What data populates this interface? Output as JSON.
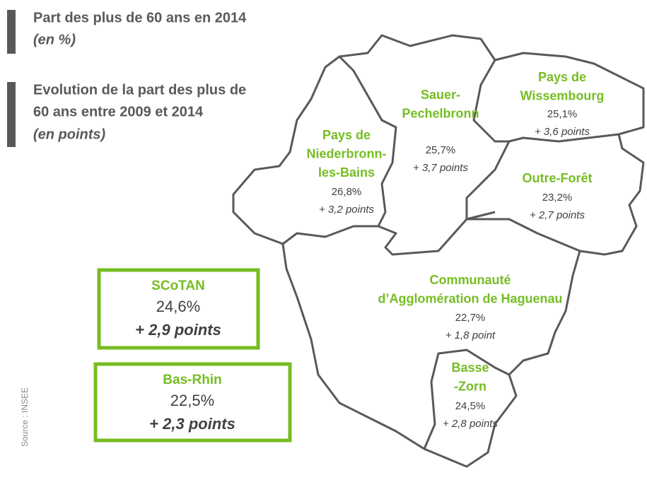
{
  "legend": [
    {
      "lines": [
        "Part des plus de 60 ans en 2014"
      ],
      "note": "(en %)"
    },
    {
      "lines": [
        "Evolution de la part des plus de",
        "60 ans entre 2009 et 2014"
      ],
      "note": "(en points)"
    }
  ],
  "regions": [
    {
      "name": [
        "Pays de",
        "Niederbronn-",
        "les-Bains"
      ],
      "share": "26,8%",
      "evolution": "+ 3,2 points"
    },
    {
      "name": [
        "Sauer-",
        "Pechelbronn"
      ],
      "share": "25,7%",
      "evolution": "+ 3,7 points"
    },
    {
      "name": [
        "Pays de",
        "Wissembourg"
      ],
      "share": "25,1%",
      "evolution": "+ 3,6 points"
    },
    {
      "name": [
        "Outre-Forêt"
      ],
      "share": "23,2%",
      "evolution": "+ 2,7 points"
    },
    {
      "name": [
        "Communauté",
        "d’Agglomération de Haguenau"
      ],
      "share": "22,7%",
      "evolution": "+ 1,8 point"
    },
    {
      "name": [
        "Basse",
        "-Zorn"
      ],
      "share": "24,5%",
      "evolution": "+ 2,8 points"
    }
  ],
  "summaries": [
    {
      "name": "SCoTAN",
      "share": "24,6%",
      "evolution": "+ 2,9 points"
    },
    {
      "name": "Bas-Rhin",
      "share": "22,5%",
      "evolution": "+ 2,3 points"
    }
  ],
  "source": "Source : INSEE"
}
